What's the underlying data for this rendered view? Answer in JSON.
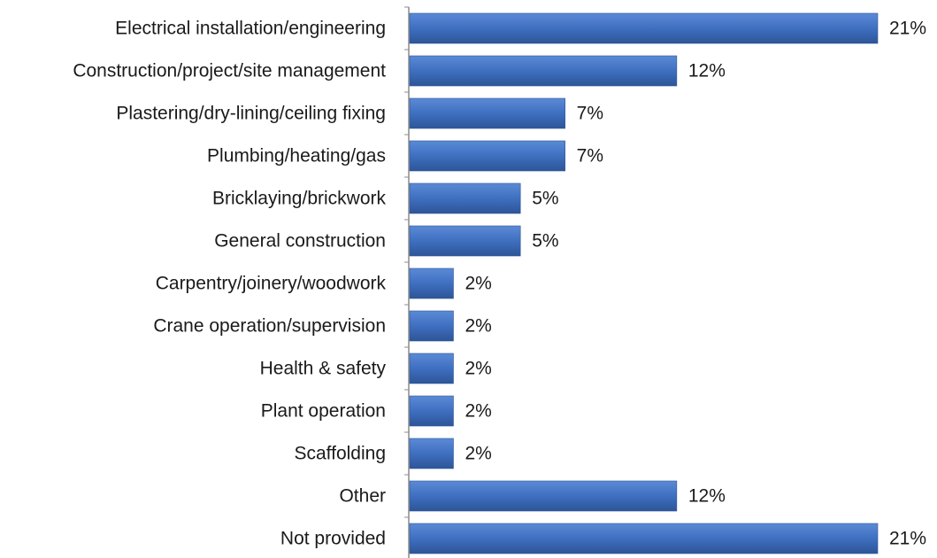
{
  "chart_data": {
    "type": "bar",
    "orientation": "horizontal",
    "title": "",
    "xlabel": "",
    "ylabel": "",
    "categories": [
      "Electrical installation/engineering",
      "Construction/project/site management",
      "Plastering/dry-lining/ceiling fixing",
      "Plumbing/heating/gas",
      "Bricklaying/brickwork",
      "General construction",
      "Carpentry/joinery/woodwork",
      "Crane operation/supervision",
      "Health & safety",
      "Plant operation",
      "Scaffolding",
      "Other",
      "Not provided"
    ],
    "values": [
      21,
      12,
      7,
      7,
      5,
      5,
      2,
      2,
      2,
      2,
      2,
      12,
      21
    ],
    "value_labels": [
      "21%",
      "12%",
      "7%",
      "7%",
      "5%",
      "5%",
      "2%",
      "2%",
      "2%",
      "2%",
      "2%",
      "12%",
      "21%"
    ],
    "unit": "%",
    "xlim": [
      0,
      21
    ],
    "grid": false,
    "legend": "none",
    "bar_color": "#4472c4",
    "bar_color_dark": "#2e5597"
  }
}
